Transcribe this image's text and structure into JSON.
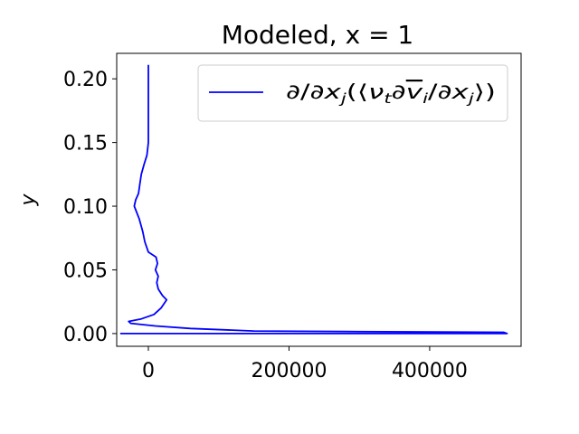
{
  "chart_data": {
    "type": "line",
    "title": "Modeled, x = 1",
    "xlabel": "",
    "ylabel": "y",
    "xlim": [
      -45000,
      530000
    ],
    "ylim": [
      -0.01,
      0.22
    ],
    "x_ticks": [
      {
        "value": 0,
        "label": "0"
      },
      {
        "value": 200000,
        "label": "200000"
      },
      {
        "value": 400000,
        "label": "400000"
      }
    ],
    "y_ticks": [
      {
        "value": 0.0,
        "label": "0.00"
      },
      {
        "value": 0.05,
        "label": "0.05"
      },
      {
        "value": 0.1,
        "label": "0.10"
      },
      {
        "value": 0.15,
        "label": "0.15"
      },
      {
        "value": 0.2,
        "label": "0.20"
      }
    ],
    "grid": false,
    "legend_position": "upper right",
    "series": [
      {
        "name": "∂/∂xj(⟨νt∂v̄i/∂xj⟩)",
        "color": "#0000ff",
        "points": [
          [
            -40000,
            0.0
          ],
          [
            510000,
            0.0
          ],
          [
            505000,
            0.001
          ],
          [
            300000,
            0.0015
          ],
          [
            150000,
            0.002
          ],
          [
            60000,
            0.004
          ],
          [
            10000,
            0.006
          ],
          [
            -25000,
            0.008
          ],
          [
            -28000,
            0.0095
          ],
          [
            -10000,
            0.0115
          ],
          [
            8000,
            0.015
          ],
          [
            18000,
            0.02
          ],
          [
            26000,
            0.0265
          ],
          [
            20000,
            0.03
          ],
          [
            14000,
            0.035
          ],
          [
            12000,
            0.04
          ],
          [
            14000,
            0.045
          ],
          [
            10000,
            0.05
          ],
          [
            13000,
            0.055
          ],
          [
            11000,
            0.06
          ],
          [
            0,
            0.064
          ],
          [
            -5000,
            0.072
          ],
          [
            -8000,
            0.08
          ],
          [
            -13000,
            0.09
          ],
          [
            -20000,
            0.1
          ],
          [
            -18000,
            0.105
          ],
          [
            -14000,
            0.11
          ],
          [
            -12000,
            0.118
          ],
          [
            -10000,
            0.125
          ],
          [
            -6000,
            0.133
          ],
          [
            -2000,
            0.14
          ],
          [
            0,
            0.15
          ],
          [
            0,
            0.165
          ],
          [
            0,
            0.18
          ],
          [
            0,
            0.195
          ],
          [
            0,
            0.211
          ]
        ]
      }
    ]
  }
}
